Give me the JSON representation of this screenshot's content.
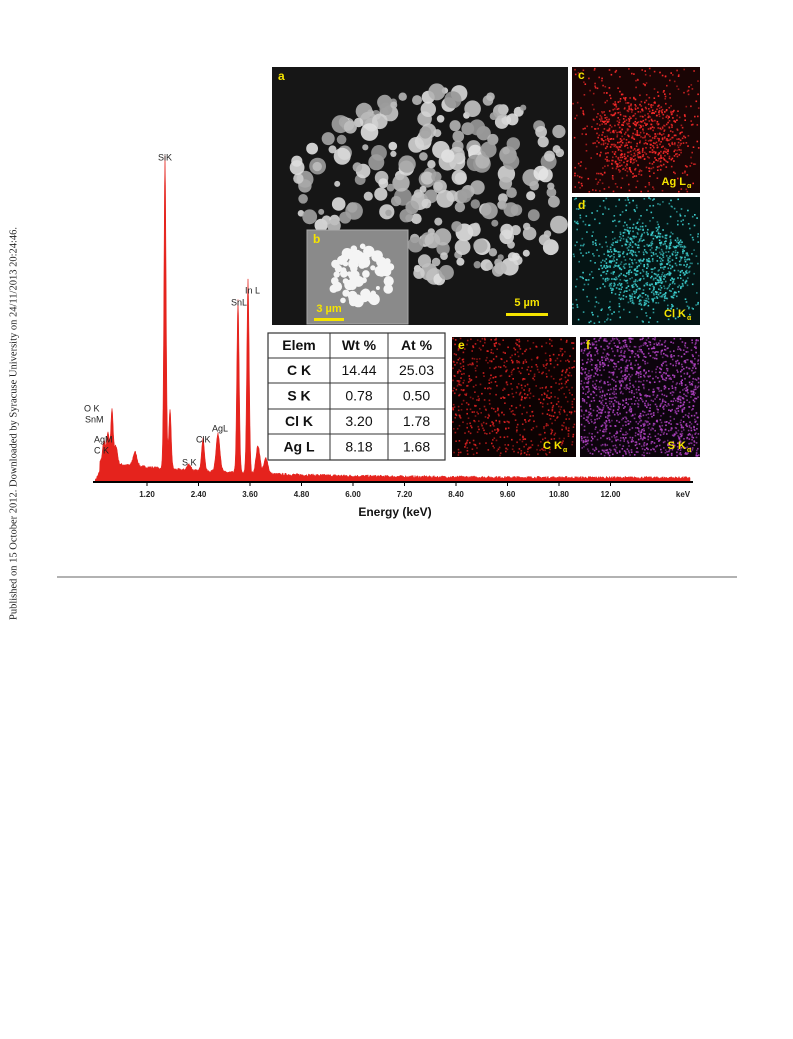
{
  "sidebar": "Published on 15 October 2012. Downloaded by Syracuse University on 24/11/2013 20:24:46.",
  "figure": {
    "spectrum": {
      "peak_labels": [
        "O K",
        "SnM",
        "AgM",
        "C K",
        "SiK",
        "In L",
        "SnL",
        "AgL",
        "ClK",
        "S K"
      ],
      "xticks": [
        "1.20",
        "2.40",
        "3.60",
        "4.80",
        "6.00",
        "7.20",
        "8.40",
        "9.60",
        "10.80",
        "12.00"
      ],
      "unit": "keV",
      "xlabel": "Energy (keV)"
    },
    "micrograph": {
      "label": "a",
      "scale": "5 µm"
    },
    "inset": {
      "label": "b",
      "scale": "3 µm"
    },
    "maps": [
      {
        "label": "c",
        "element": "Ag L",
        "line": "α"
      },
      {
        "label": "d",
        "element": "Cl K",
        "line": "α"
      },
      {
        "label": "e",
        "element": "C K",
        "line": "α"
      },
      {
        "label": "f",
        "element": "S K",
        "line": "α"
      }
    ],
    "table": {
      "header": [
        "Elem",
        "Wt %",
        "At %"
      ],
      "rows": [
        [
          "C K",
          "14.44",
          "25.03"
        ],
        [
          "S K",
          "0.78",
          "0.50"
        ],
        [
          "Cl K",
          "3.20",
          "1.78"
        ],
        [
          "Ag L",
          "8.18",
          "1.68"
        ]
      ]
    }
  }
}
